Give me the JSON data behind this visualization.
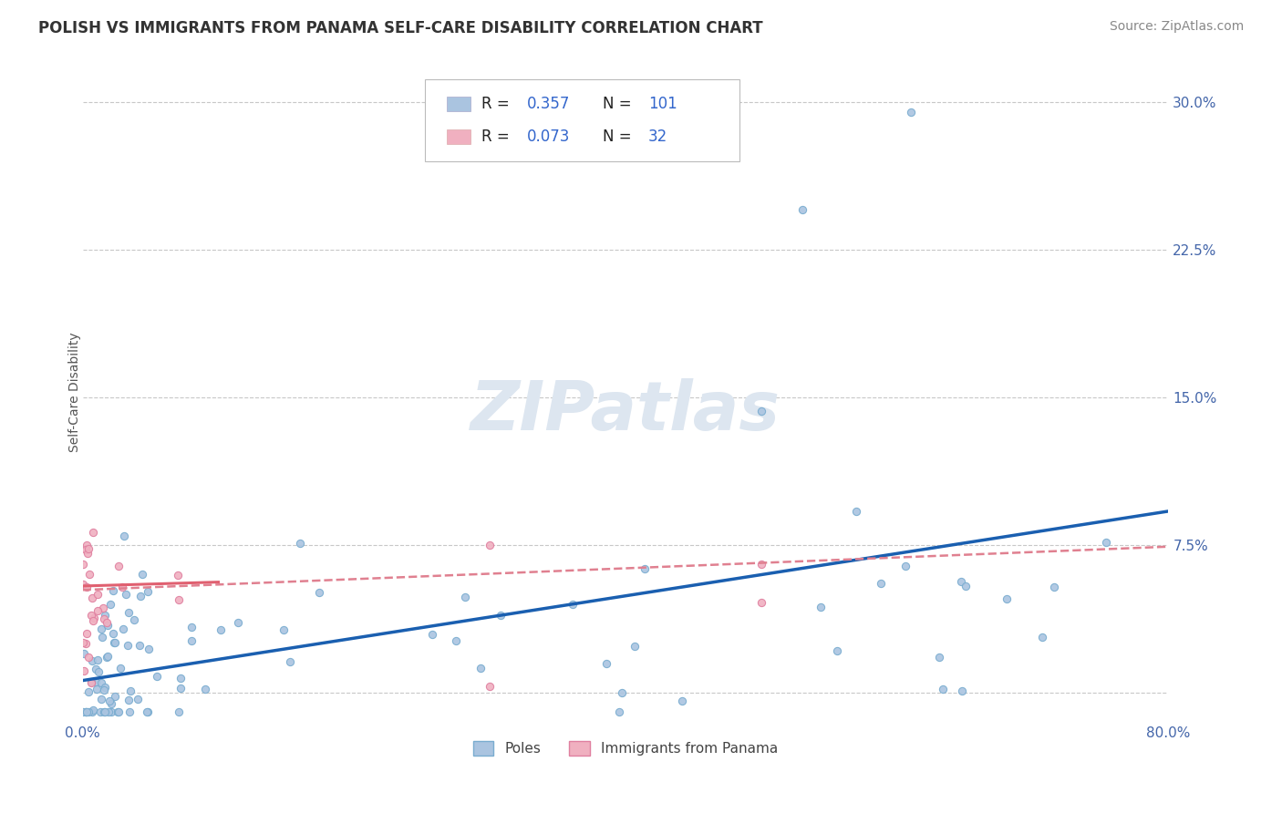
{
  "title": "POLISH VS IMMIGRANTS FROM PANAMA SELF-CARE DISABILITY CORRELATION CHART",
  "source": "Source: ZipAtlas.com",
  "ylabel": "Self-Care Disability",
  "x_min": 0.0,
  "x_max": 0.8,
  "y_min": -0.015,
  "y_max": 0.32,
  "background_color": "#ffffff",
  "grid_color": "#c8c8c8",
  "poles_color": "#aac4e0",
  "poles_edge_color": "#7aadd0",
  "panama_color": "#f0b0c0",
  "panama_edge_color": "#e080a0",
  "poles_line_color": "#1a5fb0",
  "panama_line_color": "#e06070",
  "panama_dash_color": "#e08090",
  "watermark_text": "ZIPatlas",
  "watermark_color": "#dde6f0",
  "poles_R": 0.357,
  "poles_N": 101,
  "panama_R": 0.073,
  "panama_N": 32,
  "title_fontsize": 12,
  "source_fontsize": 10,
  "tick_fontsize": 11,
  "ylabel_fontsize": 10
}
